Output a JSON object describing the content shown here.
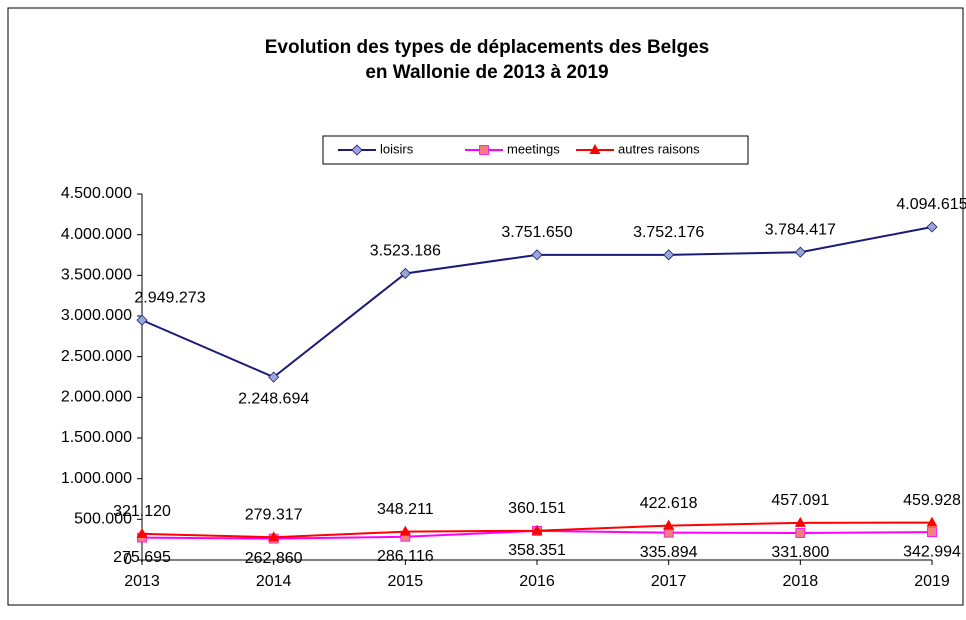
{
  "chart_data": {
    "type": "line",
    "title": [
      "Evolution des types de déplacements des Belges",
      "en Wallonie de 2013 à 2019"
    ],
    "categories": [
      "2013",
      "2014",
      "2015",
      "2016",
      "2017",
      "2018",
      "2019"
    ],
    "series": [
      {
        "name": "loisirs",
        "color": "#1a1a78",
        "marker": "diamond",
        "marker_color": "#9aa6d8",
        "values": [
          2949273,
          2248694,
          3523186,
          3751650,
          3752176,
          3784417,
          4094615
        ],
        "value_labels": [
          "2.949.273",
          "2.248.694",
          "3.523.186",
          "3.751.650",
          "3.752.176",
          "3.784.417",
          "4.094.615"
        ]
      },
      {
        "name": "meetings",
        "color": "#ff00ff",
        "marker": "square",
        "marker_color": "#f08080",
        "values": [
          275695,
          262860,
          286116,
          358351,
          335894,
          331800,
          342994
        ],
        "value_labels": [
          "275.695",
          "262.860",
          "286.116",
          "358.351",
          "335.894",
          "331.800",
          "342.994"
        ]
      },
      {
        "name": "autres raisons",
        "color": "#ff0000",
        "marker": "triangle",
        "marker_color": "#ff0000",
        "values": [
          321120,
          279317,
          348211,
          360151,
          422618,
          457091,
          459928
        ],
        "value_labels": [
          "321.120",
          "279.317",
          "348.211",
          "360.151",
          "422.618",
          "457.091",
          "459.928"
        ]
      }
    ],
    "ylim": [
      0,
      4500000
    ],
    "yticks": [
      0,
      {
        "value": 500000,
        "label": "500.000"
      },
      {
        "value": 1000000,
        "label": "1.000.000"
      },
      {
        "value": 1500000,
        "label": "1.500.000"
      },
      {
        "value": 2000000,
        "label": "2.000.000"
      },
      {
        "value": 2500000,
        "label": "2.500.000"
      },
      {
        "value": 3000000,
        "label": "3.000.000"
      },
      {
        "value": 3500000,
        "label": "3.500.000"
      },
      {
        "value": 4000000,
        "label": "4.000.000"
      },
      {
        "value": 4500000,
        "label": "4.500.000"
      }
    ],
    "grid": false,
    "legend": "top"
  }
}
